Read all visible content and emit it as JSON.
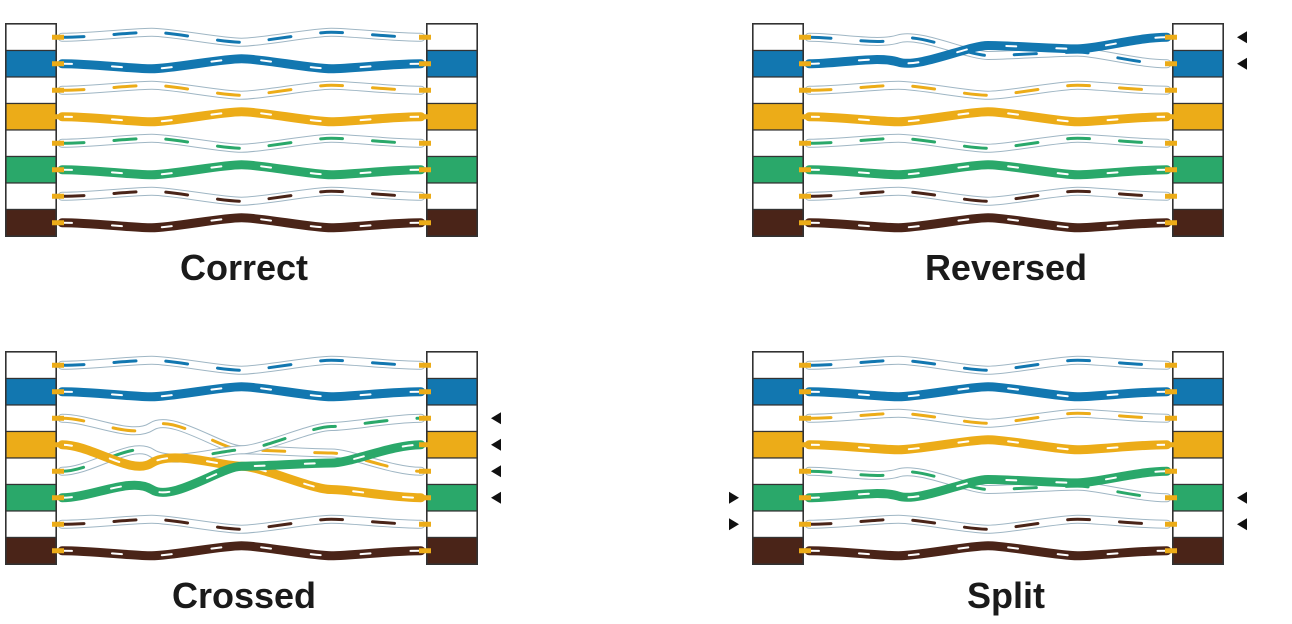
{
  "colors": {
    "blue": "#1277b0",
    "orange": "#ecac18",
    "green": "#2aa86a",
    "brown": "#4a2418",
    "white": "#ffffff",
    "outline": "#333333",
    "pin": "#ecac18",
    "marker": "#111111"
  },
  "pin_colors": [
    "white",
    "blue",
    "white",
    "orange",
    "white",
    "green",
    "white",
    "brown"
  ],
  "panels": [
    {
      "id": "correct",
      "caption": "Correct",
      "mapping": [
        1,
        2,
        3,
        4,
        5,
        6,
        7,
        8
      ],
      "markers_left": [],
      "markers_right": []
    },
    {
      "id": "reversed",
      "caption": "Reversed",
      "mapping": [
        2,
        1,
        3,
        4,
        5,
        6,
        7,
        8
      ],
      "markers_left": [],
      "markers_right": [
        1,
        2
      ]
    },
    {
      "id": "crossed",
      "caption": "Crossed",
      "mapping": [
        1,
        2,
        5,
        6,
        3,
        4,
        7,
        8
      ],
      "markers_left": [],
      "markers_right": [
        3,
        4,
        5,
        6
      ]
    },
    {
      "id": "split",
      "caption": "Split",
      "mapping": [
        1,
        2,
        3,
        4,
        6,
        5,
        7,
        8
      ],
      "markers_left": [
        6,
        7
      ],
      "markers_right": [
        6,
        7
      ]
    }
  ]
}
